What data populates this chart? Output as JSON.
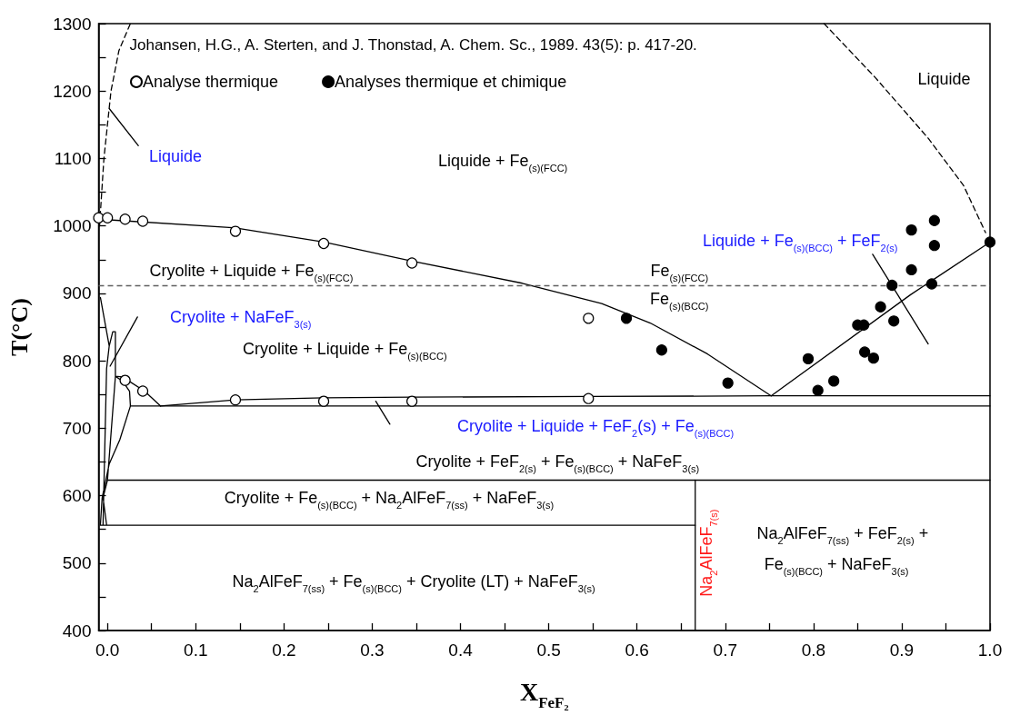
{
  "chart_data": {
    "type": "scatter",
    "xlabel": "X$_{FeF₂}$",
    "ylabel": "T(°C)",
    "xlim": [
      -0.01,
      1.0
    ],
    "ylim": [
      400,
      1300
    ],
    "xticks": [
      {
        "value": 0,
        "label": "0.0"
      },
      {
        "value": 0.05,
        "label": null
      },
      0.1,
      {
        "value": 0.15,
        "label": null
      },
      0.2,
      {
        "value": 0.25,
        "label": null
      },
      0.3,
      {
        "value": 0.35,
        "label": null
      },
      0.4,
      {
        "value": 0.45,
        "label": null
      },
      0.5,
      {
        "value": 0.55,
        "label": null
      },
      0.6,
      {
        "value": 0.65,
        "label": null
      },
      0.7,
      {
        "value": 0.75,
        "label": null
      },
      0.8,
      {
        "value": 0.85,
        "label": null
      },
      0.9,
      {
        "value": 0.95,
        "label": null
      },
      {
        "value": 1,
        "label": "1.0"
      }
    ],
    "yticks": [
      400,
      {
        "value": 450,
        "label": null
      },
      500,
      {
        "value": 550,
        "label": null
      },
      600,
      {
        "value": 650,
        "label": null
      },
      700,
      {
        "value": 750,
        "label": null
      },
      800,
      {
        "value": 850,
        "label": null
      },
      900,
      {
        "value": 950,
        "label": null
      },
      1000,
      {
        "value": 1050,
        "label": null
      },
      1100,
      {
        "value": 1150,
        "label": null
      },
      1200,
      {
        "value": 1250,
        "label": null
      },
      1300
    ],
    "grid": false,
    "legend": "top left",
    "marker": "circle",
    "series": [
      {
        "name": "Analyse thermique",
        "color": "#ffffff",
        "x": [
          -0.01,
          0.0,
          0.02,
          0.04,
          0.145,
          0.245,
          0.345,
          0.545,
          0.02,
          0.04,
          0.145,
          0.245,
          0.345,
          0.545
        ],
        "values": [
          1012,
          1012,
          1010,
          1007,
          992,
          974,
          945,
          863,
          771,
          755,
          742,
          740,
          740,
          744
        ]
      },
      {
        "name": "Analyses thermique et chimique",
        "color": "#000000",
        "x": [
          0.588,
          0.628,
          0.703,
          0.794,
          0.805,
          0.823,
          0.85,
          0.857,
          0.858,
          0.868,
          0.876,
          0.889,
          0.891,
          0.911,
          0.911,
          0.937,
          0.937,
          0.934,
          1.0
        ],
        "values": [
          863,
          816,
          767,
          803,
          756,
          770,
          853,
          853,
          813,
          804,
          880,
          912,
          859,
          994,
          935,
          1008,
          971,
          914,
          976
        ]
      },
      {
        "type": "line",
        "marker": "none",
        "color": "#000000",
        "x": [
          -0.01,
          0.002,
          0.145,
          0.245,
          0.345,
          0.47,
          0.56,
          0.615,
          0.68,
          0.752
        ],
        "values": [
          1010,
          1009,
          997,
          976,
          948,
          915,
          885,
          856,
          810,
          748
        ]
      },
      {
        "type": "line",
        "marker": "none",
        "color": "#000000",
        "x": [
          0.752,
          0.91,
          1.0
        ],
        "values": [
          748,
          898,
          976
        ]
      },
      {
        "type": "line",
        "marker": "none",
        "color": "#000000",
        "x": [
          0.06,
          0.145,
          0.245,
          0.345,
          0.545,
          0.752,
          1.0
        ],
        "values": [
          733,
          742,
          745,
          746,
          747,
          748,
          748
        ]
      },
      {
        "type": "line",
        "marker": "none",
        "color": "#000000",
        "x": [
          -0.008,
          -0.006,
          0.002,
          0.014,
          0.026,
          0.025,
          0.017,
          0.009,
          0.0,
          -0.005,
          -0.001,
          -0.005,
          0.0,
          0.009,
          0.009,
          0.006,
          0.002,
          -0.008,
          0.002,
          -0.001,
          -0.005,
          -0.001,
          0.002,
          0.006,
          0.009,
          0.009,
          0.017,
          0.023,
          0.042,
          0.06
        ],
        "values": [
          557,
          597,
          647,
          683,
          733,
          755,
          770,
          777,
          623,
          597,
          557,
          597,
          623,
          777,
          843,
          843,
          822,
          894,
          822,
          788,
          557,
          788,
          822,
          843,
          843,
          777,
          776,
          771,
          755,
          733
        ]
      },
      {
        "type": "line",
        "marker": "none",
        "color": "#000000",
        "x": [
          0.026,
          1.0
        ],
        "values": [
          733,
          733
        ]
      },
      {
        "type": "line",
        "marker": "none",
        "color": "#000000",
        "x": [
          0.0,
          1.0
        ],
        "values": [
          623,
          623
        ]
      },
      {
        "type": "line",
        "marker": "none",
        "color": "#000000",
        "x": [
          -0.008,
          0.666
        ],
        "values": [
          556,
          556
        ]
      },
      {
        "type": "line",
        "marker": "none",
        "color": "#000000",
        "x": [
          0.666,
          0.666
        ],
        "values": [
          400,
          623
        ]
      },
      {
        "type": "line",
        "marker": "none",
        "line_style": "dashed",
        "color": "#000000",
        "x": [
          -0.009,
          -0.004,
          0.004,
          0.013,
          0.026
        ],
        "values": [
          1000,
          1100,
          1200,
          1260,
          1300
        ]
      },
      {
        "type": "line",
        "marker": "none",
        "line_style": "dashed",
        "color": "#000000",
        "x": [
          0.812,
          0.87,
          0.93,
          0.97,
          0.995
        ],
        "values": [
          1300,
          1220,
          1130,
          1060,
          990
        ]
      },
      {
        "type": "line",
        "marker": "none",
        "color": "#000000",
        "x": [
          0.002,
          0.035
        ],
        "values": [
          1174,
          1119
        ]
      },
      {
        "type": "line",
        "marker": "none",
        "color": "#000000",
        "x": [
          0.034,
          0.003
        ],
        "values": [
          865,
          792
        ]
      },
      {
        "type": "line",
        "marker": "none",
        "color": "#000000",
        "x": [
          0.304,
          0.32
        ],
        "values": [
          740,
          706
        ]
      },
      {
        "type": "line",
        "marker": "none",
        "color": "#000000",
        "x": [
          0.867,
          0.93
        ],
        "values": [
          958,
          825
        ]
      }
    ],
    "ref_lines": [
      {
        "axis": "y",
        "value": 912,
        "line_style": "dashed",
        "color": "#606060"
      }
    ],
    "annotations": [
      "Johansen, H.G., A. Sterten, and J. Thonstad, A. Chem. Sc., 1989. 43(5): p. 417-20.",
      "Liquide",
      "Liquide + Fe$_{(s)(FCC)}$",
      "Liquide",
      "Cryolite + Liquide + Fe$_{(s)(FCC)}$",
      "Fe$_{(s)(FCC)}$",
      "Fe$_{(s)(BCC)}$",
      "Liquide + Fe$_{(s)(BCC)}$ + FeF$_{2(s)}$",
      "Cryolite + NaFeF$_{3(s)}$",
      "Cryolite + Liquide + Fe$_{(s)(BCC)}$",
      "Cryolite + Liquide + FeF$_{2}$(s) + Fe$_{(s)(BCC)}$",
      "Cryolite + FeF$_{2(s)}$ + Fe$_{(s)(BCC)}$ + NaFeF$_{3(s)}$",
      "Cryolite + Fe$_{(s)(BCC)}$ + Na$_{2}$AlFeF$_{7(ss)}$ + NaFeF$_{3(s)}$",
      "Na$_{2}$AlFeF$_{7(ss)}$ + Fe$_{(s)(BCC)}$ + Cryolite (LT) + NaFeF$_{3(s)}$",
      "Na$_{2}$AlFeF$_{7(ss)}$ + FeF$_{2(s)}$ +",
      "Fe$_{(s)(BCC)}$ + NaFeF$_{3(s)}$",
      "Na$_{2}$AlFeF$_{7(s)}$"
    ]
  }
}
